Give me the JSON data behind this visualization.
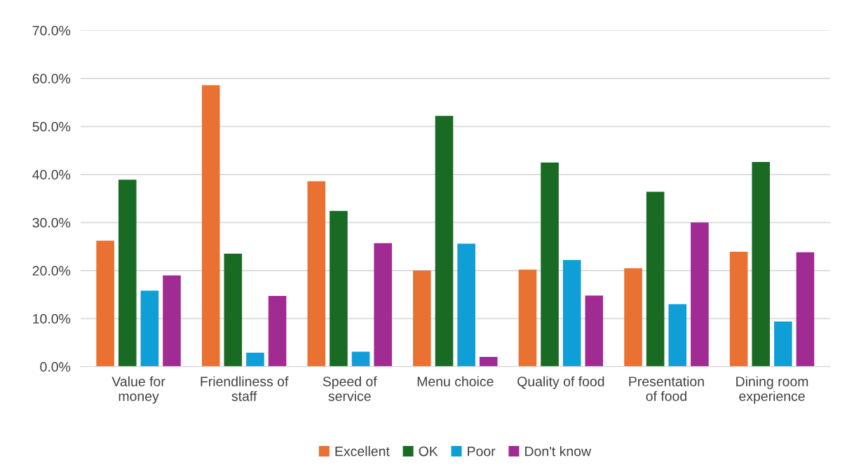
{
  "chart_data": {
    "type": "bar",
    "categories": [
      "Value for\nmoney",
      "Friendliness of\nstaff",
      "Speed of\nservice",
      "Menu choice",
      "Quality of food",
      "Presentation\nof food",
      "Dining room\nexperience"
    ],
    "series": [
      {
        "name": "Excellent",
        "color": "#e97132",
        "values": [
          26.2,
          58.6,
          38.6,
          20.0,
          20.2,
          20.5,
          23.9
        ]
      },
      {
        "name": "OK",
        "color": "#196b24",
        "values": [
          38.9,
          23.5,
          32.4,
          52.2,
          42.5,
          36.4,
          42.6
        ]
      },
      {
        "name": "Poor",
        "color": "#0f9ed5",
        "values": [
          15.8,
          2.9,
          3.1,
          25.6,
          22.2,
          13.0,
          9.4
        ]
      },
      {
        "name": "Don't know",
        "color": "#a02b93",
        "values": [
          19.0,
          14.7,
          25.7,
          2.0,
          14.8,
          30.0,
          23.8
        ]
      }
    ],
    "ylim": [
      0,
      70
    ],
    "yticks": [
      {
        "value": 0,
        "label": "0.0%"
      },
      {
        "value": 10,
        "label": "10.0%"
      },
      {
        "value": 20,
        "label": "20.0%"
      },
      {
        "value": 30,
        "label": "30.0%"
      },
      {
        "value": 40,
        "label": "40.0%"
      },
      {
        "value": 50,
        "label": "50.0%"
      },
      {
        "value": 60,
        "label": "60.0%"
      },
      {
        "value": 70,
        "label": "70.0%"
      }
    ],
    "grid": "y",
    "legend": "bottom"
  }
}
